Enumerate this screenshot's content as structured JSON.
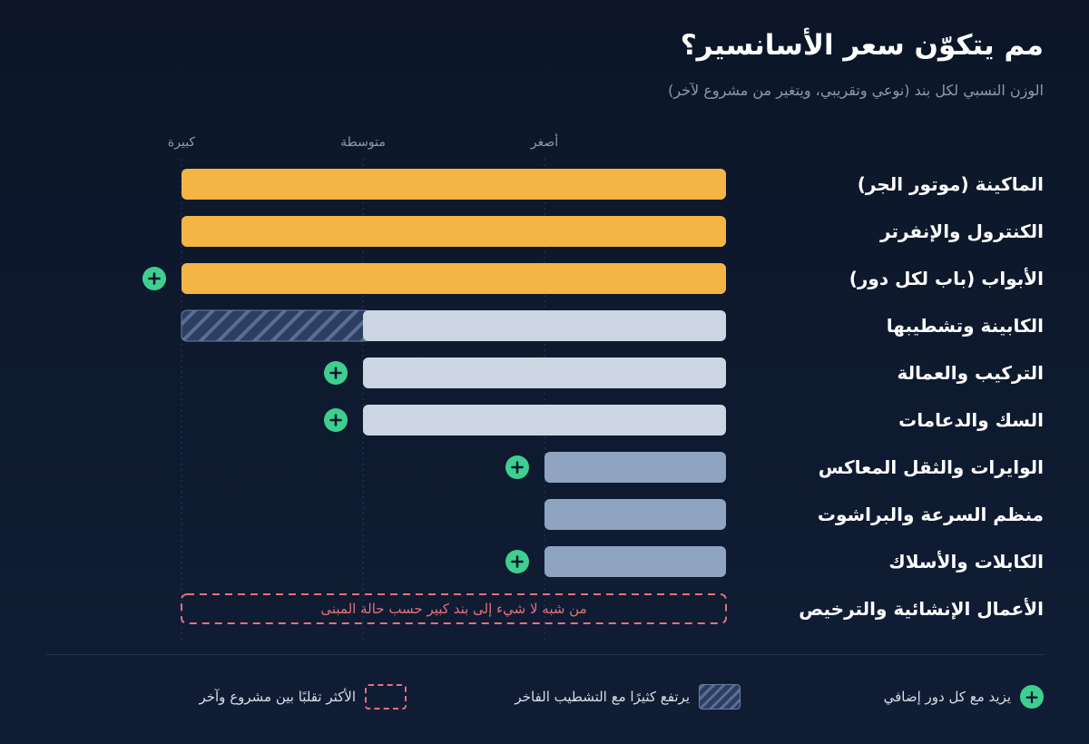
{
  "header": {
    "title": "مم يتكوّن سعر الأسانسير؟",
    "subtitle": "الوزن النسبي لكل بند (نوعي وتقريبي، ويتغير من مشروع لآخر)"
  },
  "chart_data": {
    "type": "bar",
    "orientation": "horizontal",
    "scale_labels": [
      "أصغر",
      "متوسطة",
      "كبيرة"
    ],
    "scale_max": 3,
    "categories": [
      "الماكينة (موتور الجر)",
      "الكنترول والإنفرتر",
      "الأبواب (باب لكل دور)",
      "الكابينة وتشطيبها",
      "التركيب والعمالة",
      "السك والدعامات",
      "الوايرات والثقل المعاكس",
      "منظم السرعة والبراشوت",
      "الكابلات والأسلاك",
      "الأعمال الإنشائية والترخيص"
    ],
    "values": [
      3,
      3,
      3,
      2,
      2,
      2,
      1,
      1,
      1,
      null
    ],
    "hatched_extension_to": [
      null,
      null,
      null,
      3,
      null,
      null,
      null,
      null,
      null,
      null
    ],
    "grows_per_floor": [
      false,
      false,
      true,
      false,
      true,
      true,
      true,
      false,
      true,
      false
    ],
    "variable_range": [
      false,
      false,
      false,
      false,
      false,
      false,
      false,
      false,
      false,
      true
    ],
    "variable_note": "من شبه لا شيء إلى بند كبير حسب حالة المبنى",
    "colors": {
      "large": "#f4b545",
      "medium": "#ccd6e3",
      "small": "#8fa4c1",
      "plus": "#3ecf8e",
      "dashed": "#e8707a"
    }
  },
  "legend": {
    "plus_label": "يزيد مع كل دور إضافي",
    "hatch_label": "يرتفع كثيرًا مع التشطيب الفاخر",
    "dashed_label": "الأكثر تقلبًا بين مشروع وآخر",
    "plus_icon": "plus-circle-icon"
  }
}
